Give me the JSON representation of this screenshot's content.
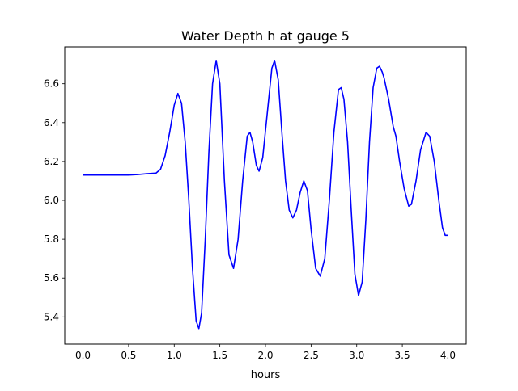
{
  "chart_data": {
    "type": "line",
    "title": "Water Depth h at gauge 5",
    "xlabel": "hours",
    "ylabel": "",
    "xlim": [
      -0.2,
      4.2
    ],
    "ylim": [
      5.26,
      6.79
    ],
    "xticks": [
      0.0,
      0.5,
      1.0,
      1.5,
      2.0,
      2.5,
      3.0,
      3.5,
      4.0
    ],
    "xtick_labels": [
      "0.0",
      "0.5",
      "1.0",
      "1.5",
      "2.0",
      "2.5",
      "3.0",
      "3.5",
      "4.0"
    ],
    "yticks": [
      5.4,
      5.6,
      5.8,
      6.0,
      6.2,
      6.4,
      6.6
    ],
    "ytick_labels": [
      "5.4",
      "5.6",
      "5.8",
      "6.0",
      "6.2",
      "6.4",
      "6.6"
    ],
    "grid": false,
    "legend": "none",
    "series": [
      {
        "color": "#0000ff",
        "x": [
          0.0,
          0.3,
          0.5,
          0.6,
          0.7,
          0.8,
          0.85,
          0.9,
          0.95,
          1.0,
          1.04,
          1.08,
          1.12,
          1.16,
          1.2,
          1.24,
          1.27,
          1.3,
          1.34,
          1.38,
          1.42,
          1.46,
          1.5,
          1.55,
          1.6,
          1.65,
          1.7,
          1.75,
          1.8,
          1.83,
          1.86,
          1.9,
          1.93,
          1.97,
          2.02,
          2.07,
          2.1,
          2.14,
          2.18,
          2.22,
          2.26,
          2.3,
          2.34,
          2.38,
          2.42,
          2.46,
          2.5,
          2.55,
          2.6,
          2.65,
          2.7,
          2.75,
          2.8,
          2.83,
          2.86,
          2.9,
          2.94,
          2.98,
          3.02,
          3.06,
          3.1,
          3.14,
          3.18,
          3.22,
          3.25,
          3.28,
          3.3,
          3.35,
          3.4,
          3.43,
          3.47,
          3.52,
          3.57,
          3.6,
          3.65,
          3.7,
          3.76,
          3.8,
          3.85,
          3.9,
          3.94,
          3.97,
          4.0
        ],
        "y": [
          6.13,
          6.13,
          6.13,
          6.133,
          6.137,
          6.14,
          6.16,
          6.23,
          6.35,
          6.49,
          6.55,
          6.5,
          6.3,
          6.0,
          5.65,
          5.38,
          5.34,
          5.42,
          5.8,
          6.25,
          6.6,
          6.72,
          6.6,
          6.1,
          5.72,
          5.65,
          5.8,
          6.1,
          6.33,
          6.35,
          6.3,
          6.18,
          6.15,
          6.22,
          6.45,
          6.68,
          6.72,
          6.62,
          6.35,
          6.1,
          5.95,
          5.91,
          5.95,
          6.04,
          6.1,
          6.05,
          5.85,
          5.65,
          5.61,
          5.7,
          6.0,
          6.35,
          6.57,
          6.58,
          6.52,
          6.3,
          5.95,
          5.62,
          5.51,
          5.58,
          5.9,
          6.3,
          6.58,
          6.68,
          6.69,
          6.66,
          6.63,
          6.52,
          6.38,
          6.33,
          6.2,
          6.06,
          5.97,
          5.98,
          6.1,
          6.26,
          6.35,
          6.33,
          6.2,
          6.0,
          5.86,
          5.82,
          5.82
        ]
      }
    ]
  }
}
